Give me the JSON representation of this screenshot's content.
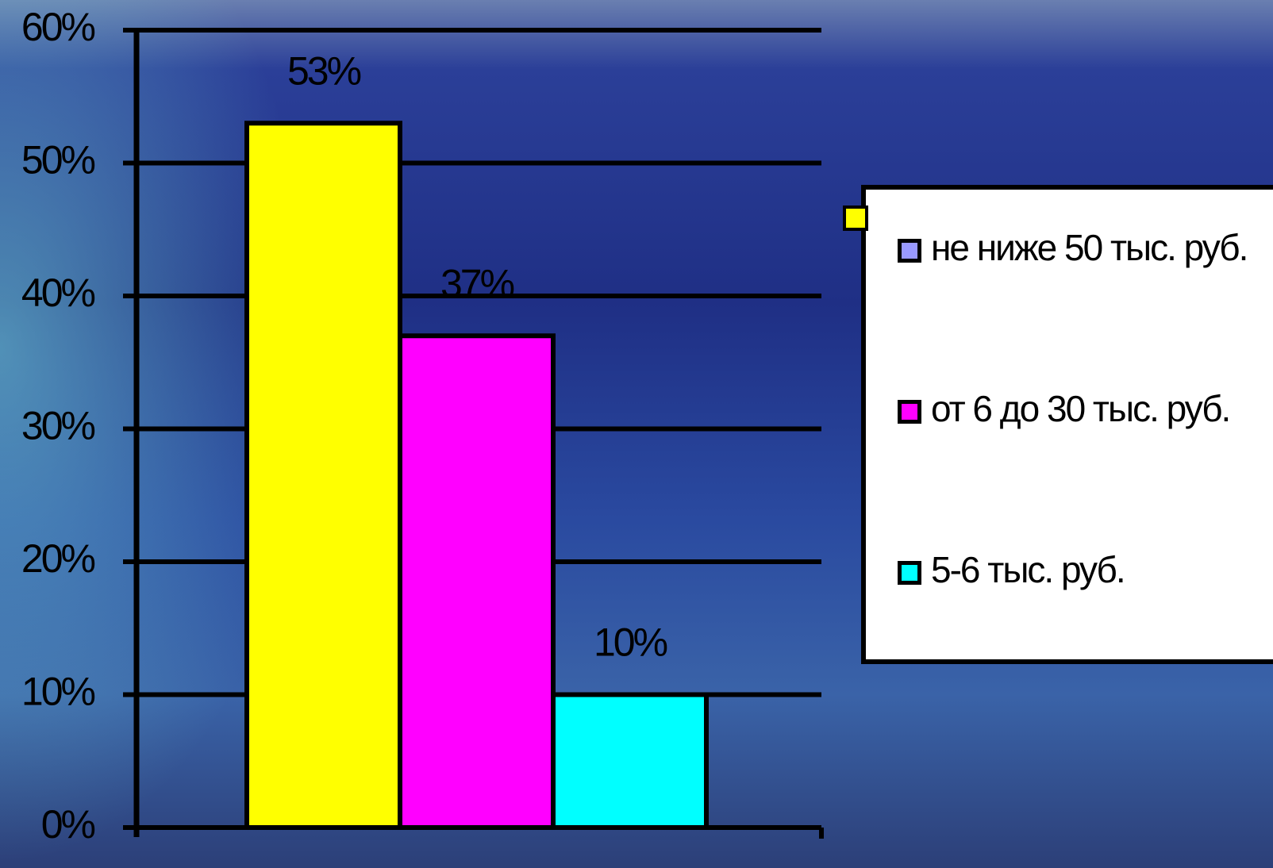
{
  "chart_data": {
    "type": "bar",
    "series": [
      {
        "name": "не ниже 50 тыс. руб.",
        "color": "#ffff00",
        "legend_color": "#9999ff",
        "values": [
          53
        ],
        "value_labels": [
          "53%"
        ]
      },
      {
        "name": "от 6 до 30 тыс. руб.",
        "color": "#ff00ff",
        "legend_color": "#ff00ff",
        "values": [
          37
        ],
        "value_labels": [
          "37%"
        ]
      },
      {
        "name": "5-6 тыс. руб.",
        "color": "#00ffff",
        "legend_color": "#00ffff",
        "values": [
          10
        ],
        "value_labels": [
          "10%"
        ]
      }
    ],
    "ylim": [
      0,
      60
    ],
    "yticks": [
      {
        "value": 0,
        "label": "0%"
      },
      {
        "value": 10,
        "label": "10%"
      },
      {
        "value": 20,
        "label": "20%"
      },
      {
        "value": 30,
        "label": "30%"
      },
      {
        "value": 40,
        "label": "40%"
      },
      {
        "value": 50,
        "label": "50%"
      },
      {
        "value": 60,
        "label": "60%"
      }
    ],
    "grid": true,
    "legend": "right"
  }
}
